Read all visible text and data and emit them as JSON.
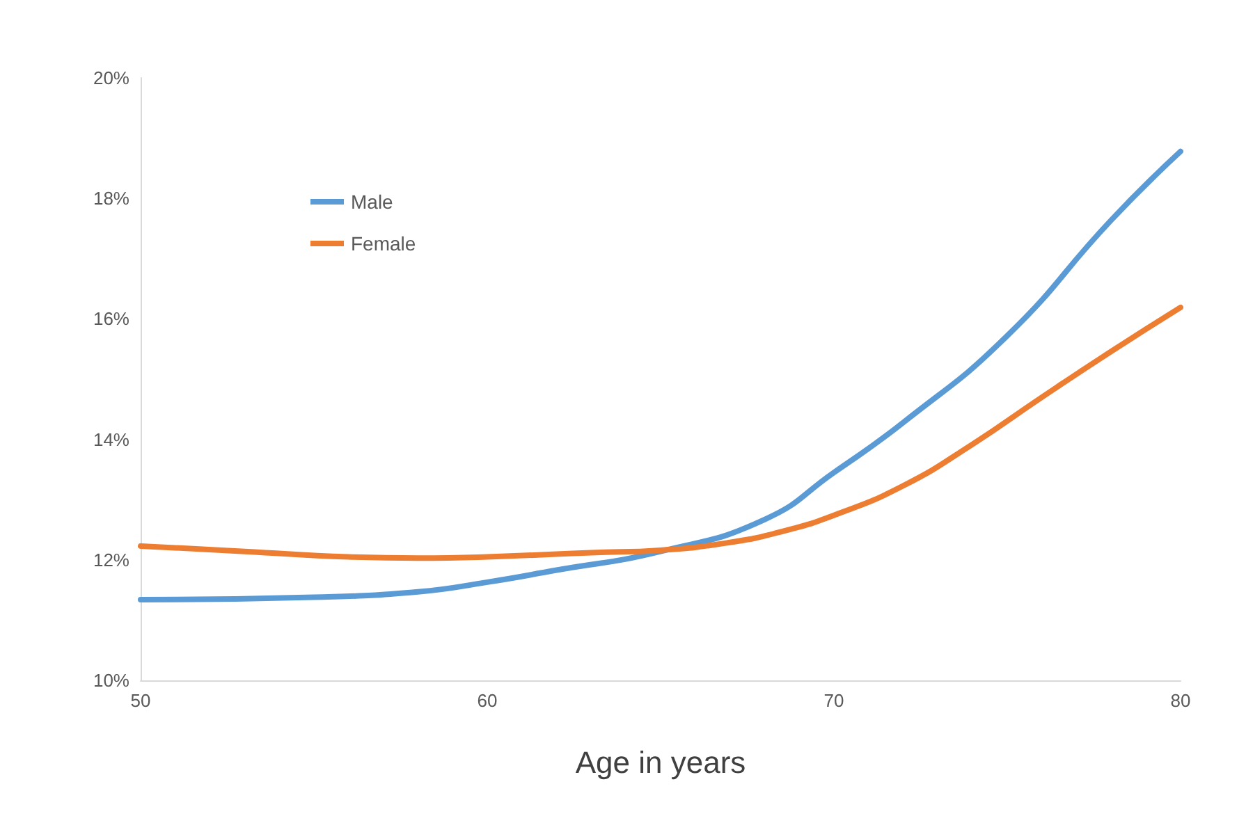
{
  "chart_data": {
    "type": "line",
    "xlabel": "Age in years",
    "xlim": [
      50,
      80
    ],
    "xticks": [
      50,
      60,
      70,
      80
    ],
    "ylim": [
      10,
      20
    ],
    "yticks": [
      {
        "value": 10,
        "label": "10%"
      },
      {
        "value": 12,
        "label": "12%"
      },
      {
        "value": 14,
        "label": "14%"
      },
      {
        "value": 16,
        "label": "16%"
      },
      {
        "value": 18,
        "label": "18%"
      },
      {
        "value": 20,
        "label": "20%"
      }
    ],
    "grid": false,
    "legend": "top left",
    "marker": "none",
    "line_style": "solid",
    "series": [
      {
        "name": "Male",
        "color": "#5b9bd5",
        "x": [
          50,
          55,
          58,
          60,
          62,
          65,
          68,
          70,
          72,
          75,
          78,
          80
        ],
        "values": [
          11.34,
          11.38,
          11.47,
          11.63,
          11.83,
          12.14,
          12.67,
          13.45,
          14.28,
          15.72,
          17.64,
          18.78
        ]
      },
      {
        "name": "Female",
        "color": "#ed7d31",
        "x": [
          50,
          53,
          56,
          58,
          60,
          63,
          65,
          67,
          68.5,
          70,
          72,
          74,
          76,
          78,
          80
        ],
        "values": [
          12.23,
          12.14,
          12.05,
          12.03,
          12.05,
          12.12,
          12.16,
          12.29,
          12.47,
          12.74,
          13.23,
          13.92,
          14.7,
          15.46,
          16.19
        ]
      }
    ]
  }
}
